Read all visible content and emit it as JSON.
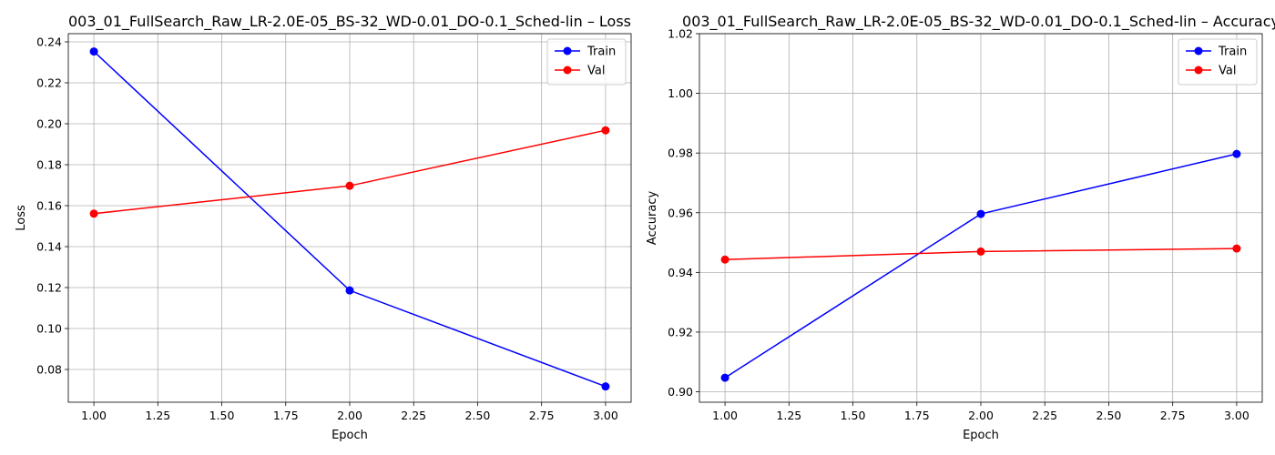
{
  "chart_data": [
    {
      "type": "line",
      "title": "003_01_FullSearch_Raw_LR-2.0E-05_BS-32_WD-0.01_DO-0.1_Sched-lin – Loss",
      "xlabel": "Epoch",
      "ylabel": "Loss",
      "x": [
        1,
        2,
        3
      ],
      "xlim": [
        0.9,
        3.1
      ],
      "ylim": [
        0.064,
        0.244
      ],
      "xticks": [
        "1.00",
        "1.25",
        "1.50",
        "1.75",
        "2.00",
        "2.25",
        "2.50",
        "2.75",
        "3.00"
      ],
      "yticks": [
        "0.08",
        "0.10",
        "0.12",
        "0.14",
        "0.16",
        "0.18",
        "0.20",
        "0.22",
        "0.24"
      ],
      "grid": true,
      "legend_position": "top-right",
      "series": [
        {
          "name": "Train",
          "color": "#0000ff",
          "values": [
            0.2353,
            0.1186,
            0.0717
          ]
        },
        {
          "name": "Val",
          "color": "#ff0000",
          "values": [
            0.1561,
            0.1697,
            0.1968
          ]
        }
      ]
    },
    {
      "type": "line",
      "title": "003_01_FullSearch_Raw_LR-2.0E-05_BS-32_WD-0.01_DO-0.1_Sched-lin – Accuracy",
      "xlabel": "Epoch",
      "ylabel": "Accuracy",
      "x": [
        1,
        2,
        3
      ],
      "xlim": [
        0.9,
        3.1
      ],
      "ylim": [
        0.8965,
        1.02
      ],
      "xticks": [
        "1.00",
        "1.25",
        "1.50",
        "1.75",
        "2.00",
        "2.25",
        "2.50",
        "2.75",
        "3.00"
      ],
      "yticks": [
        "0.90",
        "0.92",
        "0.94",
        "0.96",
        "0.98",
        "1.00",
        "1.02"
      ],
      "grid": true,
      "legend_position": "top-right",
      "series": [
        {
          "name": "Train",
          "color": "#0000ff",
          "values": [
            0.9047,
            0.9596,
            0.9797
          ]
        },
        {
          "name": "Val",
          "color": "#ff0000",
          "values": [
            0.9443,
            0.947,
            0.948
          ]
        }
      ]
    }
  ]
}
